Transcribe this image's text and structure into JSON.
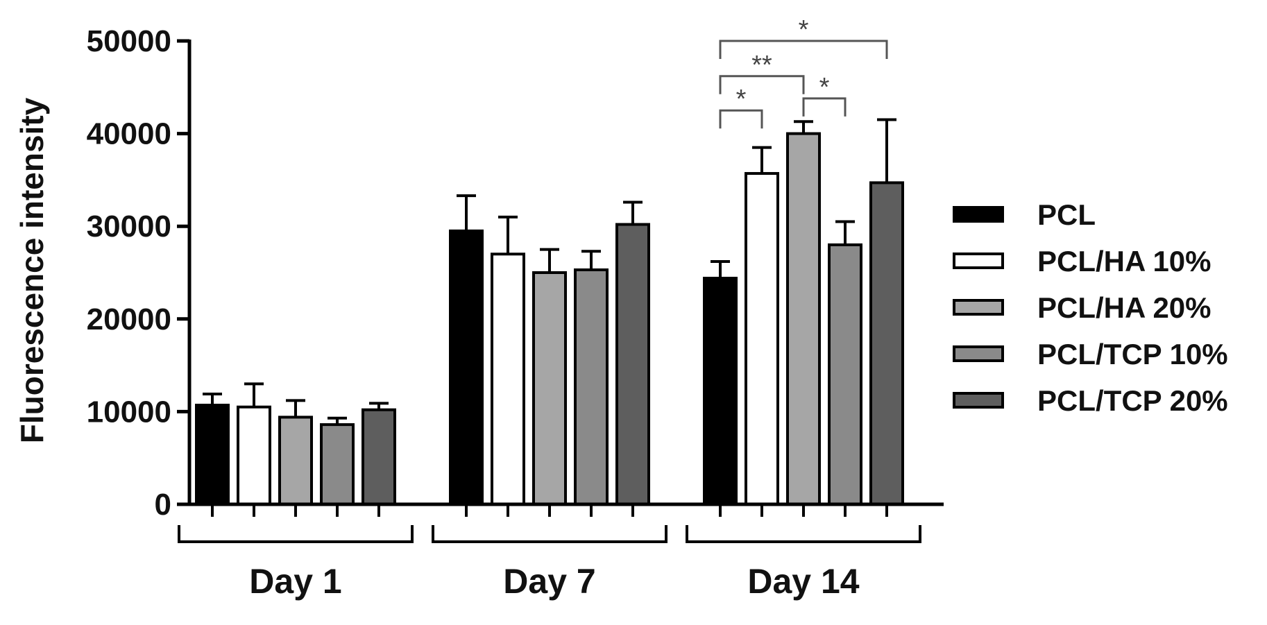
{
  "chart_data": {
    "type": "bar",
    "title": "",
    "xlabel": "",
    "ylabel": "Fluorescence intensity",
    "ylim": [
      0,
      50000
    ],
    "yticks": [
      "0",
      "10000",
      "20000",
      "30000",
      "40000",
      "50000"
    ],
    "grid": false,
    "legend_position": "right",
    "categories": [
      "Day 1",
      "Day 7",
      "Day 14"
    ],
    "series": [
      {
        "name": "PCL",
        "color": "#000000",
        "values": [
          10700,
          29500,
          24400
        ],
        "errors": [
          1200,
          3800,
          1800
        ]
      },
      {
        "name": "PCL/HA 10%",
        "color": "#ffffff",
        "values": [
          10500,
          27000,
          35700
        ],
        "errors": [
          2500,
          4000,
          2800
        ]
      },
      {
        "name": "PCL/HA 20%",
        "color": "#a6a6a6",
        "values": [
          9400,
          25000,
          40000
        ],
        "errors": [
          1800,
          2500,
          1300
        ]
      },
      {
        "name": "PCL/TCP 10%",
        "color": "#8a8a8a",
        "values": [
          8600,
          25300,
          28000
        ],
        "errors": [
          700,
          2000,
          2500
        ]
      },
      {
        "name": "PCL/TCP 20%",
        "color": "#5e5e5e",
        "values": [
          10200,
          30200,
          34700
        ],
        "errors": [
          700,
          2400,
          6800
        ]
      }
    ],
    "significance": [
      {
        "group": 2,
        "from": 0,
        "to": 1,
        "y": 42500,
        "label": "*"
      },
      {
        "group": 2,
        "from": 0,
        "to": 2,
        "y": 46200,
        "label": "**"
      },
      {
        "group": 2,
        "from": 2,
        "to": 3,
        "y": 43800,
        "label": "*"
      },
      {
        "group": 2,
        "from": 0,
        "to": 4,
        "y": 50000,
        "label": "*"
      }
    ]
  }
}
